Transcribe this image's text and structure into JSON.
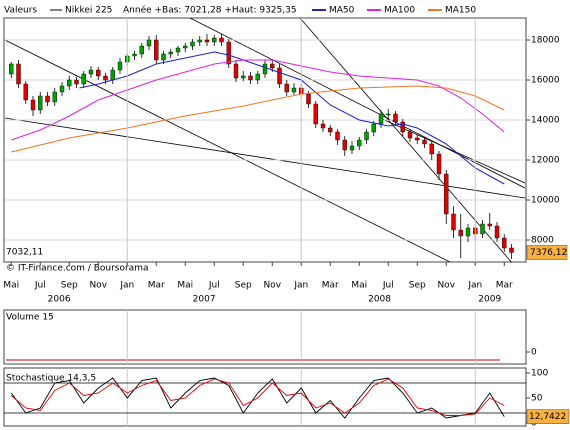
{
  "chart_data": {
    "type": "candlestick",
    "legend": {
      "header": "Valeurs",
      "name": "Nikkei 225",
      "range_text": "Année +Bas: 7021,28 +Haut: 9325,35"
    },
    "low_label": "7032,11",
    "credit": "© IT-Finance.com / Boursorama",
    "up_color": "#00a000",
    "down_color": "#e00000",
    "xlim": [
      -0.5,
      35.5
    ],
    "xticks": [
      {
        "value": 0,
        "label": "Mai"
      },
      {
        "value": 2,
        "label": "Jul"
      },
      {
        "value": 4,
        "label": "Sep"
      },
      {
        "value": 6,
        "label": "Nov"
      },
      {
        "value": 8,
        "label": "Jan"
      },
      {
        "value": 10,
        "label": "Mar"
      },
      {
        "value": 12,
        "label": "Mai"
      },
      {
        "value": 14,
        "label": "Jul"
      },
      {
        "value": 16,
        "label": "Sep"
      },
      {
        "value": 18,
        "label": "Nov"
      },
      {
        "value": 20,
        "label": "Jan"
      },
      {
        "value": 22,
        "label": "Mar"
      },
      {
        "value": 24,
        "label": "Mai"
      },
      {
        "value": 26,
        "label": "Jul"
      },
      {
        "value": 28,
        "label": "Sep"
      },
      {
        "value": 30,
        "label": "Nov"
      },
      {
        "value": 32,
        "label": "Jan"
      },
      {
        "value": 34,
        "label": "Mar"
      }
    ],
    "year_ticks": [
      {
        "value": 3.3,
        "label": "2006"
      },
      {
        "value": 13.3,
        "label": "2007"
      },
      {
        "value": 25.4,
        "label": "2008"
      },
      {
        "value": 33,
        "label": "2009"
      }
    ],
    "ylim": [
      6900,
      19100
    ],
    "yticks": [
      8000,
      10000,
      12000,
      14000,
      16000,
      18000
    ],
    "x": [
      0,
      0.5,
      1,
      1.5,
      2,
      2.5,
      3,
      3.5,
      4,
      4.5,
      5,
      5.5,
      6,
      6.5,
      7,
      7.5,
      8,
      8.5,
      9,
      9.5,
      10,
      10.5,
      11,
      11.5,
      12,
      12.5,
      13,
      13.5,
      14,
      14.5,
      15,
      15.5,
      16,
      16.5,
      17,
      17.5,
      18,
      18.5,
      19,
      19.5,
      20,
      20.5,
      21,
      21.5,
      22,
      22.5,
      23,
      23.5,
      24,
      24.5,
      25,
      25.5,
      26,
      26.5,
      27,
      27.5,
      28,
      28.5,
      29,
      29.5,
      30,
      30.5,
      31,
      31.5,
      32,
      32.5,
      33,
      33.5,
      34,
      34.5
    ],
    "open": [
      16300,
      16800,
      15800,
      15000,
      14500,
      15200,
      14900,
      15400,
      15700,
      16000,
      15800,
      16300,
      16500,
      16200,
      16000,
      16500,
      16900,
      17200,
      17300,
      17700,
      18000,
      17000,
      17300,
      17400,
      17600,
      17700,
      17900,
      18000,
      17900,
      18100,
      17900,
      16800,
      16100,
      16200,
      16000,
      16300,
      16800,
      16600,
      15800,
      15400,
      15600,
      15300,
      14800,
      13800,
      13600,
      13400,
      13000,
      12500,
      12700,
      13000,
      13400,
      13800,
      14300,
      14300,
      13900,
      13400,
      13100,
      13000,
      12800,
      12300,
      11300,
      9300,
      8500,
      8200,
      8600,
      8300,
      8800,
      8700,
      8100,
      7600
    ],
    "high": [
      16900,
      17000,
      15950,
      15200,
      15400,
      15400,
      15600,
      15900,
      16200,
      16150,
      16450,
      16700,
      16650,
      16350,
      16650,
      17100,
      17350,
      17450,
      17850,
      18200,
      18250,
      17450,
      17550,
      17700,
      17850,
      18050,
      18200,
      18300,
      18250,
      18300,
      18050,
      17000,
      16450,
      16400,
      16450,
      17000,
      17050,
      16800,
      16000,
      15850,
      15800,
      15450,
      14950,
      14000,
      13750,
      13550,
      13200,
      12950,
      13150,
      13550,
      13950,
      14500,
      14550,
      14450,
      14050,
      13550,
      13250,
      13150,
      12950,
      12450,
      11500,
      9700,
      9300,
      8800,
      8750,
      9000,
      9350,
      8900,
      8300,
      7800
    ],
    "low": [
      16100,
      15600,
      14800,
      14200,
      14300,
      14700,
      14700,
      15200,
      15500,
      15600,
      15600,
      16100,
      16000,
      15800,
      15800,
      16300,
      16700,
      17000,
      17100,
      17500,
      16800,
      16800,
      17100,
      17200,
      17400,
      17500,
      17700,
      17700,
      17700,
      17700,
      16600,
      15900,
      15950,
      15800,
      15800,
      16100,
      16400,
      15600,
      15200,
      15200,
      15100,
      14600,
      13600,
      13400,
      13200,
      12750,
      12200,
      12300,
      12500,
      12800,
      13200,
      13600,
      14000,
      13700,
      13200,
      12900,
      12800,
      12600,
      12000,
      11000,
      8800,
      8100,
      7100,
      7900,
      8000,
      8100,
      8500,
      7900,
      7400,
      7050
    ],
    "close": [
      16800,
      15800,
      15000,
      14500,
      15200,
      14900,
      15400,
      15700,
      16000,
      15800,
      16300,
      16500,
      16200,
      16000,
      16500,
      16900,
      17200,
      17300,
      17700,
      18000,
      17000,
      17300,
      17400,
      17600,
      17700,
      17900,
      18000,
      17900,
      18100,
      17900,
      16800,
      16100,
      16200,
      16000,
      16300,
      16800,
      16600,
      15800,
      15400,
      15600,
      15300,
      14800,
      13800,
      13600,
      13400,
      13000,
      12500,
      12700,
      13000,
      13400,
      13800,
      14300,
      14300,
      13900,
      13400,
      13100,
      13000,
      12800,
      12300,
      11300,
      9300,
      8500,
      8200,
      8600,
      8300,
      8800,
      8700,
      8100,
      7600,
      7376.12
    ],
    "last_close_label": "7376,12",
    "series": [
      {
        "name": "MA50",
        "color": "#2020d0",
        "x": [
          4.7,
          6,
          8,
          10,
          12,
          14,
          15,
          16,
          18,
          20,
          22,
          24,
          26,
          27,
          28,
          29,
          30,
          31,
          32,
          33,
          34
        ],
        "values": [
          15600,
          15800,
          16200,
          16800,
          17100,
          17400,
          17250,
          17000,
          16500,
          16000,
          14750,
          14000,
          13700,
          13800,
          13600,
          13200,
          12800,
          12200,
          11600,
          11200,
          10800
        ]
      },
      {
        "name": "MA100",
        "color": "#e020e0",
        "x": [
          0,
          2,
          4,
          6,
          8,
          10,
          12,
          14,
          16,
          18,
          20,
          22,
          24,
          26,
          28,
          29.5,
          31,
          32.5,
          34
        ],
        "values": [
          13000,
          13500,
          14200,
          15000,
          15500,
          16000,
          16400,
          16800,
          17000,
          17000,
          16700,
          16400,
          16200,
          16100,
          16000,
          15700,
          15100,
          14300,
          13400
        ]
      },
      {
        "name": "MA150",
        "color": "#f07820",
        "x": [
          0,
          4,
          8,
          12,
          16,
          20,
          24,
          28,
          30,
          32,
          34
        ],
        "values": [
          12400,
          13100,
          13600,
          14200,
          14700,
          15300,
          15600,
          15700,
          15600,
          15200,
          14500
        ]
      }
    ],
    "volume": {
      "title": "Volume 15",
      "ylim": [
        0,
        5
      ],
      "yticks": [
        0
      ]
    },
    "stochastic": {
      "title": "Stochastique 14,3,5",
      "ylim": [
        0,
        100
      ],
      "yticks": [
        0,
        50,
        100
      ],
      "levels": [
        20,
        80
      ],
      "x": [
        0,
        1,
        2,
        3,
        4,
        5,
        6,
        7,
        8,
        9,
        10,
        11,
        12,
        13,
        14,
        15,
        16,
        17,
        18,
        19,
        20,
        21,
        22,
        23,
        24,
        25,
        26,
        27,
        28,
        29,
        30,
        31,
        32,
        33,
        34
      ],
      "series": [
        {
          "name": "%K",
          "color": "#000000",
          "values": [
            60,
            20,
            30,
            80,
            85,
            40,
            70,
            90,
            50,
            85,
            90,
            30,
            60,
            85,
            90,
            75,
            20,
            60,
            88,
            40,
            70,
            20,
            45,
            10,
            50,
            85,
            90,
            60,
            20,
            30,
            10,
            15,
            20,
            60,
            12.7422
          ]
        },
        {
          "name": "%D",
          "color": "#e00000",
          "values": [
            55,
            30,
            25,
            65,
            80,
            55,
            60,
            80,
            60,
            75,
            85,
            45,
            50,
            75,
            88,
            80,
            35,
            50,
            80,
            55,
            60,
            30,
            40,
            20,
            40,
            75,
            88,
            70,
            30,
            25,
            15,
            15,
            18,
            50,
            35
          ]
        }
      ],
      "last_label": "12,7422"
    }
  }
}
